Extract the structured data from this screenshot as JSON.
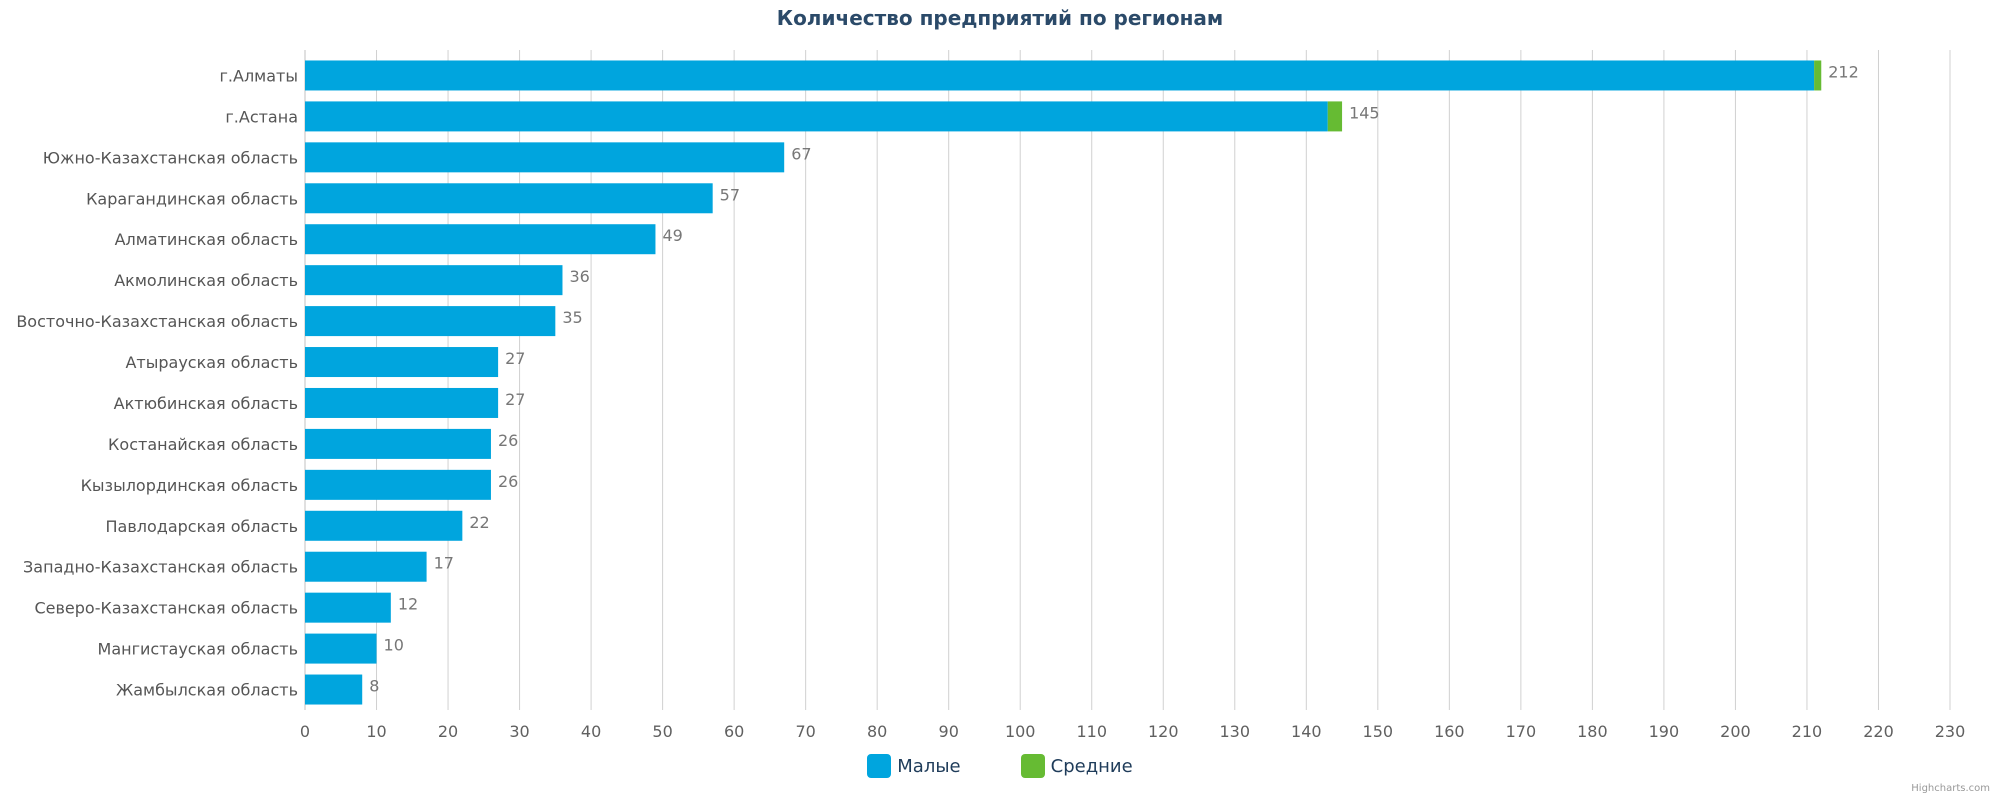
{
  "chart_data": {
    "type": "bar",
    "orientation": "horizontal",
    "stacked": true,
    "title": "Количество предприятий по регионам",
    "categories": [
      "г.Алматы",
      "г.Астана",
      "Южно-Казахстанская область",
      "Карагандинская область",
      "Алматинская область",
      "Акмолинская область",
      "Восточно-Казахстанская область",
      "Атырауская область",
      "Актюбинская область",
      "Костанайская область",
      "Кызылординская область",
      "Павлодарская область",
      "Западно-Казахстанская область",
      "Северо-Казахстанская область",
      "Мангистауская область",
      "Жамбылская область"
    ],
    "series": [
      {
        "name": "Малые",
        "color": "#00a5de",
        "values": [
          211,
          143,
          67,
          57,
          49,
          36,
          35,
          27,
          27,
          26,
          26,
          22,
          17,
          12,
          10,
          8
        ]
      },
      {
        "name": "Средние",
        "color": "#66bb33",
        "values": [
          1,
          2,
          0,
          0,
          0,
          0,
          0,
          0,
          0,
          0,
          0,
          0,
          0,
          0,
          0,
          0
        ]
      }
    ],
    "totals": [
      212,
      145,
      67,
      57,
      49,
      36,
      35,
      27,
      27,
      26,
      26,
      22,
      17,
      12,
      10,
      8
    ],
    "xlim": [
      0,
      230
    ],
    "xticks": [
      0,
      10,
      20,
      30,
      40,
      50,
      60,
      70,
      80,
      90,
      100,
      110,
      120,
      130,
      140,
      150,
      160,
      170,
      180,
      190,
      200,
      210,
      220,
      230
    ],
    "grid": true,
    "legend_position": "bottom-center",
    "credit": "Highcharts.com"
  }
}
